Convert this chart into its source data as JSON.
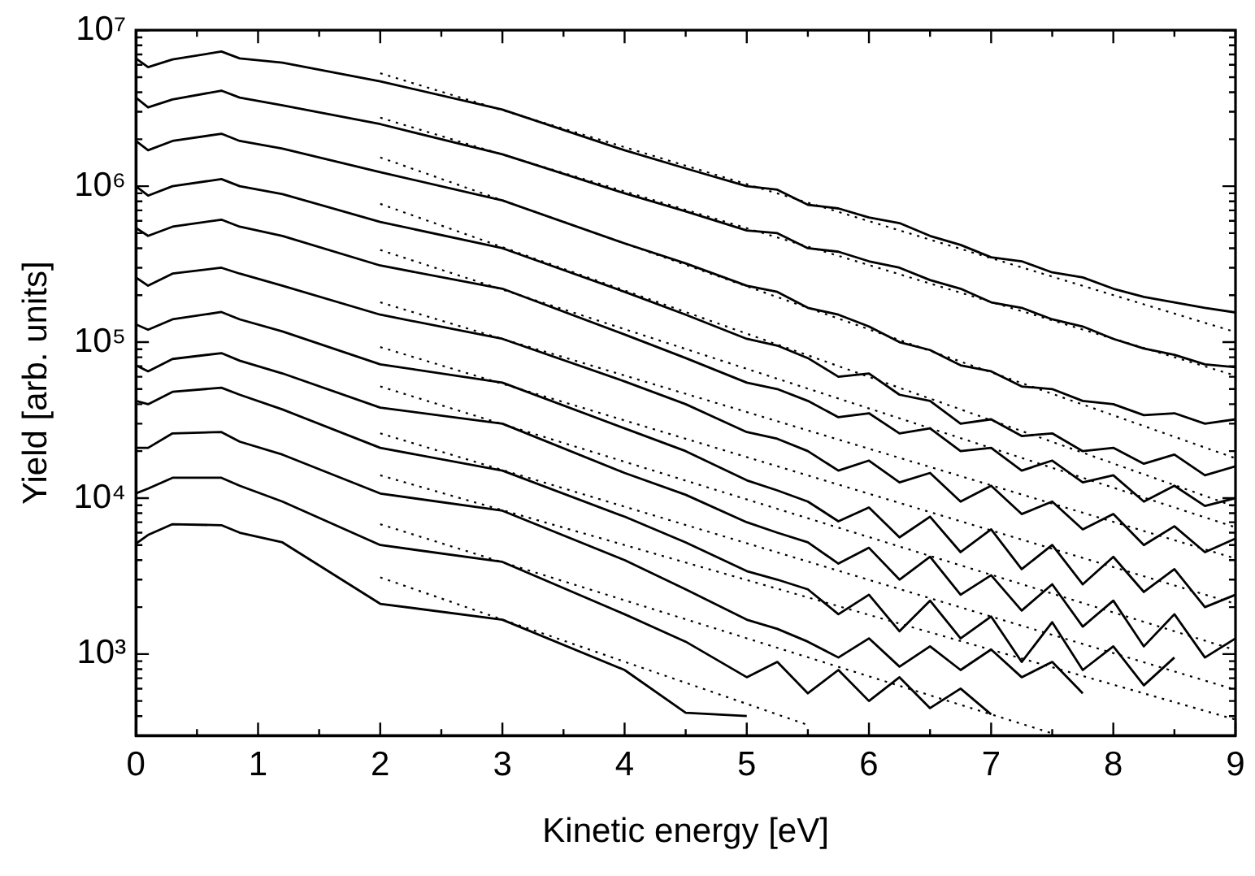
{
  "chart_data": {
    "type": "line",
    "xlabel": "Kinetic energy [eV]",
    "ylabel": "Yield [arb. units]",
    "log": "y",
    "grid": false,
    "legend": false,
    "marker": "none",
    "xlim": [
      0,
      9
    ],
    "ylim": [
      300,
      10000000
    ],
    "xticks": [
      0,
      {
        "value": 0.5,
        "label": null
      },
      1,
      {
        "value": 1.5,
        "label": null
      },
      2,
      {
        "value": 2.5,
        "label": null
      },
      3,
      {
        "value": 3.5,
        "label": null
      },
      4,
      {
        "value": 4.5,
        "label": null
      },
      5,
      {
        "value": 5.5,
        "label": null
      },
      6,
      {
        "value": 6.5,
        "label": null
      },
      7,
      {
        "value": 7.5,
        "label": null
      },
      8,
      {
        "value": 8.5,
        "label": null
      },
      9
    ],
    "yticks": [
      {
        "value": 400,
        "label": null
      },
      {
        "value": 500,
        "label": null
      },
      {
        "value": 600,
        "label": null
      },
      {
        "value": 700,
        "label": null
      },
      {
        "value": 800,
        "label": null
      },
      {
        "value": 900,
        "label": null
      },
      {
        "value": 1000,
        "label": "10³"
      },
      {
        "value": 2000,
        "label": null
      },
      {
        "value": 3000,
        "label": null
      },
      {
        "value": 4000,
        "label": null
      },
      {
        "value": 5000,
        "label": null
      },
      {
        "value": 6000,
        "label": null
      },
      {
        "value": 7000,
        "label": null
      },
      {
        "value": 8000,
        "label": null
      },
      {
        "value": 9000,
        "label": null
      },
      {
        "value": 10000,
        "label": "10⁴"
      },
      {
        "value": 20000,
        "label": null
      },
      {
        "value": 30000,
        "label": null
      },
      {
        "value": 40000,
        "label": null
      },
      {
        "value": 50000,
        "label": null
      },
      {
        "value": 60000,
        "label": null
      },
      {
        "value": 70000,
        "label": null
      },
      {
        "value": 80000,
        "label": null
      },
      {
        "value": 90000,
        "label": null
      },
      {
        "value": 100000,
        "label": "10⁵"
      },
      {
        "value": 200000,
        "label": null
      },
      {
        "value": 300000,
        "label": null
      },
      {
        "value": 400000,
        "label": null
      },
      {
        "value": 500000,
        "label": null
      },
      {
        "value": 600000,
        "label": null
      },
      {
        "value": 700000,
        "label": null
      },
      {
        "value": 800000,
        "label": null
      },
      {
        "value": 900000,
        "label": null
      },
      {
        "value": 1000000,
        "label": "10⁶"
      },
      {
        "value": 2000000,
        "label": null
      },
      {
        "value": 3000000,
        "label": null
      },
      {
        "value": 4000000,
        "label": null
      },
      {
        "value": 5000000,
        "label": null
      },
      {
        "value": 6000000,
        "label": null
      },
      {
        "value": 7000000,
        "label": null
      },
      {
        "value": 8000000,
        "label": null
      },
      {
        "value": 9000000,
        "label": null
      },
      {
        "value": 10000000,
        "label": "10⁷"
      }
    ],
    "x": [
      0,
      0.1,
      0.3,
      0.7,
      0.85,
      1.2,
      2,
      3,
      4,
      4.5,
      5,
      5.25,
      5.5,
      5.75,
      6,
      6.25,
      6.5,
      6.75,
      7,
      7.25,
      7.5,
      7.75,
      8,
      8.25,
      8.5,
      8.75,
      9
    ],
    "series": [
      {
        "color": "#000000",
        "line_style": "solid",
        "values": [
          6600000,
          5800000,
          6500000,
          7300000,
          6600000,
          6200000,
          4700000,
          3100000,
          1700000,
          1300000,
          1000000,
          950000,
          760000,
          720000,
          630000,
          580000,
          480000,
          420000,
          350000,
          330000,
          280000,
          260000,
          220000,
          195000,
          180000,
          166000,
          155000
        ]
      },
      {
        "color": "#000000",
        "line_style": "solid",
        "values": [
          3700000,
          3200000,
          3600000,
          4100000,
          3700000,
          3300000,
          2500000,
          1600000,
          900000,
          690000,
          520000,
          500000,
          400000,
          380000,
          330000,
          300000,
          250000,
          220000,
          180000,
          166000,
          140000,
          126000,
          105000,
          91000,
          83000,
          72000,
          69000
        ]
      },
      {
        "color": "#000000",
        "line_style": "solid",
        "values": [
          1950000,
          1700000,
          1950000,
          2170000,
          1950000,
          1740000,
          1230000,
          810000,
          430000,
          320000,
          230000,
          210000,
          166000,
          150000,
          126000,
          100000,
          89000,
          71000,
          65000,
          52000,
          50000,
          42000,
          40000,
          34000,
          35000,
          30000,
          32000
        ]
      },
      {
        "color": "#000000",
        "line_style": "solid",
        "values": [
          1000000,
          870000,
          1000000,
          1110000,
          1000000,
          890000,
          590000,
          400000,
          210000,
          150000,
          105000,
          95000,
          79000,
          60000,
          63000,
          46000,
          42000,
          30000,
          32000,
          25000,
          26000,
          20000,
          21000,
          16600,
          19000,
          14000,
          16000
        ]
      },
      {
        "color": "#000000",
        "line_style": "solid",
        "values": [
          540000,
          480000,
          550000,
          610000,
          550000,
          480000,
          310000,
          220000,
          112000,
          79000,
          55000,
          50000,
          42000,
          33000,
          35000,
          26000,
          28000,
          20000,
          21000,
          15000,
          17400,
          12600,
          14000,
          9500,
          12000,
          8900,
          10000
        ]
      },
      {
        "color": "#000000",
        "line_style": "solid",
        "values": [
          260000,
          230000,
          275000,
          300000,
          275000,
          230000,
          150000,
          105000,
          56000,
          40000,
          26500,
          24000,
          20000,
          15000,
          17400,
          12600,
          14500,
          9500,
          12000,
          7900,
          9500,
          6300,
          7900,
          5000,
          6600,
          4500,
          5500
        ]
      },
      {
        "color": "#000000",
        "line_style": "solid",
        "values": [
          130000,
          120000,
          140000,
          156000,
          140000,
          117000,
          72000,
          55000,
          28000,
          20000,
          13000,
          11200,
          9500,
          7100,
          8700,
          5600,
          7600,
          4500,
          6300,
          3500,
          5000,
          2800,
          4200,
          2500,
          3500,
          2000,
          2400
        ]
      },
      {
        "color": "#000000",
        "line_style": "solid",
        "values": [
          71000,
          65000,
          78000,
          85000,
          76000,
          63000,
          38000,
          30000,
          14500,
          10500,
          7000,
          6000,
          5200,
          3800,
          4800,
          3000,
          4200,
          2400,
          3200,
          1900,
          2800,
          1500,
          2200,
          1120,
          1800,
          950,
          1260
        ]
      },
      {
        "color": "#000000",
        "line_style": "solid",
        "values": [
          42000,
          40000,
          48000,
          51000,
          46000,
          37000,
          21000,
          15000,
          7600,
          5200,
          3400,
          3000,
          2600,
          1800,
          2400,
          1400,
          2200,
          1260,
          1740,
          890,
          1600,
          790,
          1120,
          630,
          950,
          null,
          null
        ]
      },
      {
        "color": "#000000",
        "line_style": "solid",
        "values": [
          21000,
          21000,
          26000,
          26500,
          23000,
          19000,
          10700,
          8300,
          4000,
          2600,
          1660,
          1450,
          1200,
          950,
          1260,
          830,
          1120,
          790,
          1070,
          710,
          890,
          560,
          null,
          null,
          null,
          null,
          null
        ]
      },
      {
        "color": "#000000",
        "line_style": "solid",
        "values": [
          10700,
          11500,
          13500,
          13500,
          12000,
          9500,
          5000,
          3900,
          1800,
          1200,
          710,
          890,
          560,
          790,
          500,
          710,
          450,
          600,
          410,
          null,
          null,
          null,
          null,
          null,
          null,
          null,
          null
        ]
      },
      {
        "color": "#000000",
        "line_style": "solid",
        "values": [
          5100,
          5800,
          6800,
          6700,
          6000,
          5200,
          2100,
          1660,
          790,
          420,
          400,
          null,
          null,
          null,
          null,
          null,
          null,
          null,
          null,
          null,
          null,
          null,
          null,
          null,
          null,
          null,
          null
        ]
      },
      {
        "type": "line",
        "color": "#000000",
        "line_style": "dotted",
        "x": [
          2,
          9
        ],
        "values": [
          5300000,
          116000
        ]
      },
      {
        "type": "line",
        "color": "#000000",
        "line_style": "dotted",
        "x": [
          2,
          9
        ],
        "values": [
          2750000,
          61000
        ]
      },
      {
        "type": "line",
        "color": "#000000",
        "line_style": "dotted",
        "x": [
          2,
          9
        ],
        "values": [
          1530000,
          18000
        ]
      },
      {
        "type": "line",
        "color": "#000000",
        "line_style": "dotted",
        "x": [
          2,
          9
        ],
        "values": [
          770000,
          8800
        ]
      },
      {
        "type": "line",
        "color": "#000000",
        "line_style": "dotted",
        "x": [
          2,
          9
        ],
        "values": [
          390000,
          6500
        ]
      },
      {
        "type": "line",
        "color": "#000000",
        "line_style": "dotted",
        "x": [
          2,
          9
        ],
        "values": [
          180000,
          4100
        ]
      },
      {
        "type": "line",
        "color": "#000000",
        "line_style": "dotted",
        "x": [
          2,
          9
        ],
        "values": [
          93000,
          2100
        ]
      },
      {
        "type": "line",
        "color": "#000000",
        "line_style": "dotted",
        "x": [
          2,
          9
        ],
        "values": [
          52000,
          1060
        ]
      },
      {
        "type": "line",
        "color": "#000000",
        "line_style": "dotted",
        "x": [
          2,
          9
        ],
        "values": [
          26000,
          590
        ]
      },
      {
        "type": "line",
        "color": "#000000",
        "line_style": "dotted",
        "x": [
          2,
          9
        ],
        "values": [
          14000,
          380
        ]
      },
      {
        "type": "line",
        "color": "#000000",
        "line_style": "dotted",
        "x": [
          2,
          7.5
        ],
        "values": [
          6800,
          310
        ]
      },
      {
        "type": "line",
        "color": "#000000",
        "line_style": "dotted",
        "x": [
          2,
          5.5
        ],
        "values": [
          3100,
          351
        ]
      }
    ]
  }
}
